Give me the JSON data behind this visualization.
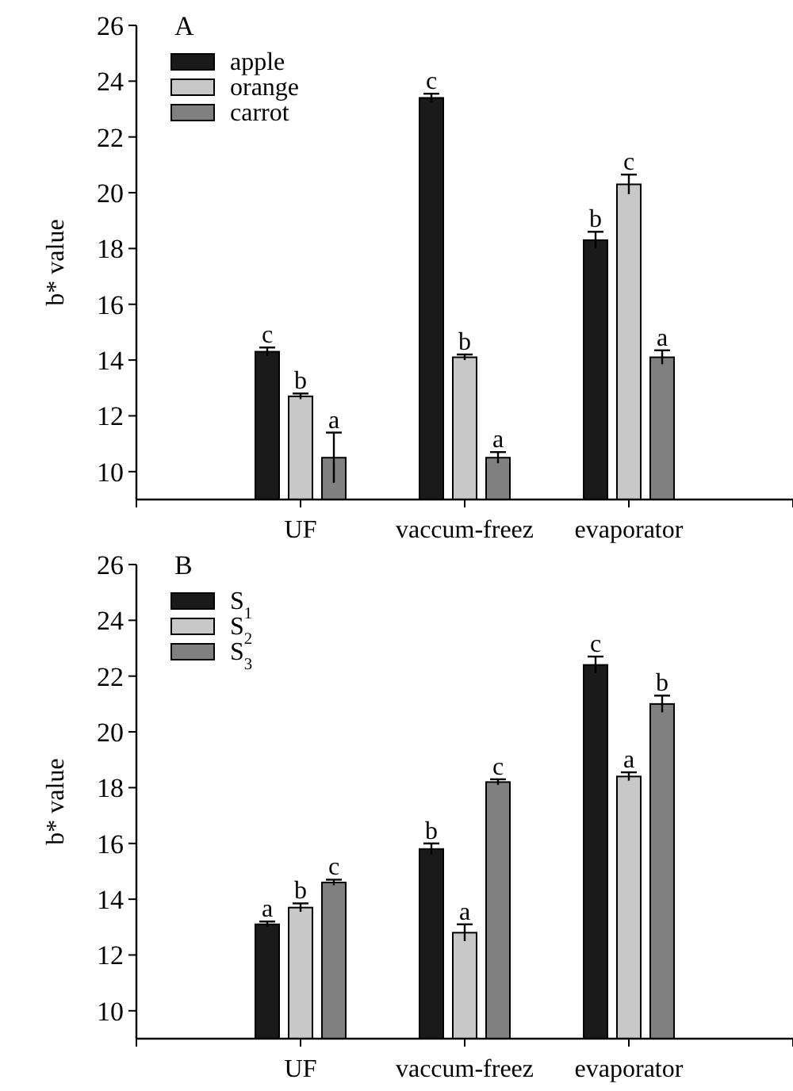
{
  "chart_data": [
    {
      "type": "bar",
      "title": "A",
      "ylabel": "b* value",
      "categories": [
        "UF",
        "vaccum-freez",
        "evaporator"
      ],
      "ylim": [
        9,
        26
      ],
      "yticks": [
        10,
        12,
        14,
        16,
        18,
        20,
        22,
        24,
        26
      ],
      "legend": "top left",
      "grid": false,
      "series": [
        {
          "name": "apple",
          "color": "#1a1a1a",
          "values": [
            14.3,
            23.4,
            18.3
          ],
          "errors": [
            0.15,
            0.15,
            0.3
          ],
          "value_labels": [
            "c",
            "c",
            "b"
          ]
        },
        {
          "name": "orange",
          "color": "#c8c8c8",
          "values": [
            12.7,
            14.1,
            20.3
          ],
          "errors": [
            0.1,
            0.1,
            0.35
          ],
          "value_labels": [
            "b",
            "b",
            "c"
          ]
        },
        {
          "name": "carrot",
          "color": "#808080",
          "values": [
            10.5,
            10.5,
            14.1
          ],
          "errors": [
            0.9,
            0.2,
            0.25
          ],
          "value_labels": [
            "a",
            "a",
            "a"
          ]
        }
      ]
    },
    {
      "type": "bar",
      "title": "B",
      "ylabel": "b* value",
      "categories": [
        "UF",
        "vaccum-freez",
        "evaporator"
      ],
      "ylim": [
        9,
        26
      ],
      "yticks": [
        10,
        12,
        14,
        16,
        18,
        20,
        22,
        24,
        26
      ],
      "legend": "top left",
      "grid": false,
      "series": [
        {
          "name": "S$_{1}$",
          "color": "#1a1a1a",
          "values": [
            13.1,
            15.8,
            22.4
          ],
          "errors": [
            0.1,
            0.2,
            0.3
          ],
          "value_labels": [
            "a",
            "b",
            "c"
          ]
        },
        {
          "name": "S$_{2}$",
          "color": "#c8c8c8",
          "values": [
            13.7,
            12.8,
            18.4
          ],
          "errors": [
            0.15,
            0.3,
            0.15
          ],
          "value_labels": [
            "b",
            "a",
            "a"
          ]
        },
        {
          "name": "S$_{3}$",
          "color": "#808080",
          "values": [
            14.6,
            18.2,
            21.0
          ],
          "errors": [
            0.1,
            0.1,
            0.3
          ],
          "value_labels": [
            "c",
            "c",
            "b"
          ]
        }
      ]
    }
  ]
}
